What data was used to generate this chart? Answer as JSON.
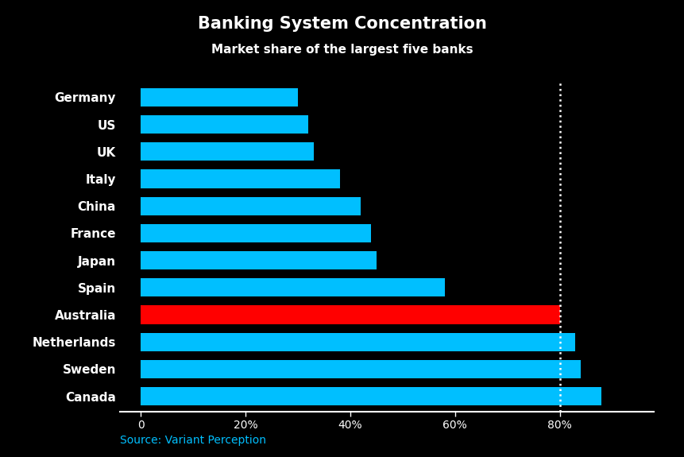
{
  "title": "Banking System Concentration",
  "subtitle": "Market share of the largest five banks",
  "source": "Source: Variant Perception",
  "categories": [
    "Canada",
    "Sweden",
    "Netherlands",
    "Australia",
    "Spain",
    "Japan",
    "France",
    "China",
    "Italy",
    "UK",
    "US",
    "Germany"
  ],
  "values": [
    88,
    84,
    83,
    80,
    58,
    45,
    44,
    42,
    38,
    33,
    32,
    30
  ],
  "bar_colors": [
    "#00BFFF",
    "#00BFFF",
    "#00BFFF",
    "#FF0000",
    "#00BFFF",
    "#00BFFF",
    "#00BFFF",
    "#00BFFF",
    "#00BFFF",
    "#00BFFF",
    "#00BFFF",
    "#00BFFF"
  ],
  "background_color": "#000000",
  "text_color": "#FFFFFF",
  "source_color": "#00BFFF",
  "dotted_line_x": 80,
  "xlim": [
    -4,
    98
  ],
  "xticks": [
    0,
    20,
    40,
    60,
    80
  ],
  "xticklabels": [
    "0",
    "20%",
    "40%",
    "60%",
    "80%"
  ],
  "title_fontsize": 15,
  "subtitle_fontsize": 11,
  "label_fontsize": 11,
  "tick_fontsize": 10,
  "source_fontsize": 10,
  "bar_height": 0.68
}
